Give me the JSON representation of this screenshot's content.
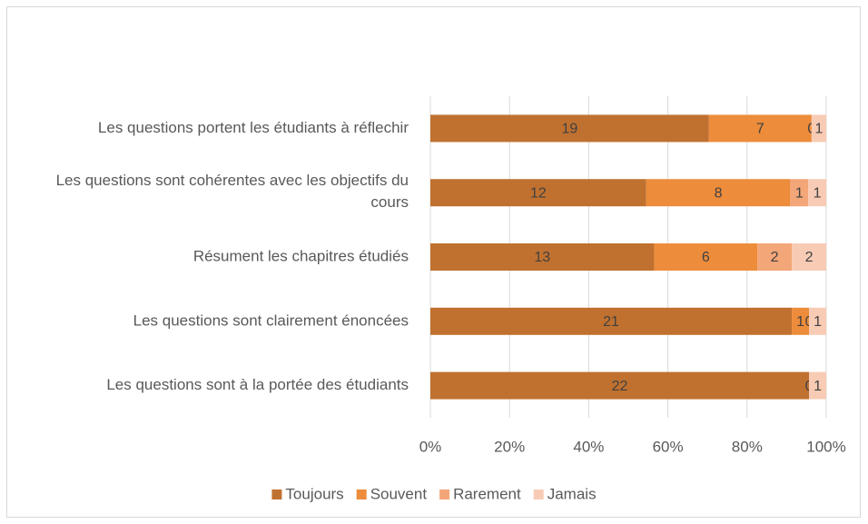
{
  "chart_data": {
    "type": "bar",
    "orientation": "horizontal",
    "stacking": "percent",
    "categories": [
      "Les questions portent les étudiants à réflechir",
      "Les questions sont cohérentes avec les objectifs du cours",
      "Résument les chapitres étudiés",
      "Les questions sont clairement énoncées",
      "Les questions sont à la portée des étudiants"
    ],
    "series": [
      {
        "name": "Toujours",
        "color": "#c0712f",
        "values": [
          19,
          12,
          13,
          21,
          22
        ]
      },
      {
        "name": "Souvent",
        "color": "#ed8c3b",
        "values": [
          7,
          8,
          6,
          1,
          null
        ]
      },
      {
        "name": "Rarement",
        "color": "#f3a678",
        "values": [
          0,
          1,
          2,
          0,
          0
        ]
      },
      {
        "name": "Jamais",
        "color": "#f8cbb5",
        "values": [
          1,
          1,
          2,
          1,
          1
        ]
      }
    ],
    "xlim": [
      0,
      100
    ],
    "xticks": [
      {
        "value": 0,
        "label": "0%"
      },
      {
        "value": 20,
        "label": "20%"
      },
      {
        "value": 40,
        "label": "40%"
      },
      {
        "value": 60,
        "label": "60%"
      },
      {
        "value": 80,
        "label": "80%"
      },
      {
        "value": 100,
        "label": "100%"
      }
    ],
    "grid": true,
    "legend": "bottom"
  }
}
